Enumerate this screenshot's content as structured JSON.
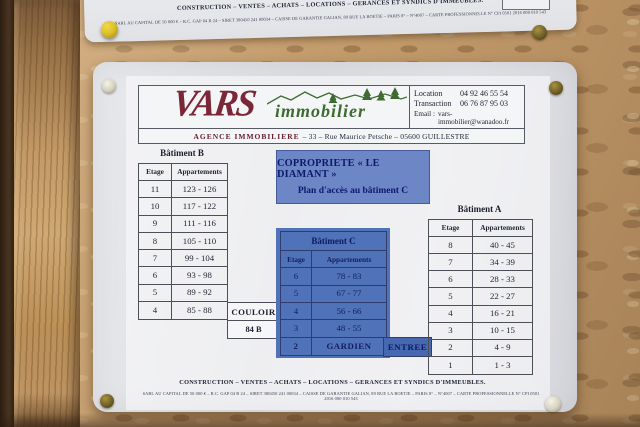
{
  "upper_sign": {
    "services_line": "CONSTRUCTION – VENTES – ACHATS – LOCATIONS – GERANCES ET SYNDICS D'IMMEUBLES.",
    "legal_line": "SARL AU CAPITAL DE 50 000 € – R.C. GAP 04 B 24 – SIRET 380450 241 00034 – CAISSE DE GARANTIE GALIAN, 89 RUE LA BOETIE – PARIS 8° – N°4007 – CARTE PROFESSIONNELLE N° CPI 0501 2016 000 010 543"
  },
  "sign": {
    "brand": {
      "name": "VARS",
      "suffix": "immobilier"
    },
    "agency_line": {
      "prefix": "AGENCE IMMOBILIERE",
      "rest": "– 33 – Rue Maurice Petsche – 05600 GUILLESTRE"
    },
    "contacts": [
      {
        "label": "Location",
        "value": "04 92 46 55 54"
      },
      {
        "label": "Transaction",
        "value": "06 76 87 95 03"
      },
      {
        "label": "Email :",
        "value": "vars-immobilier@wanadoo.fr"
      }
    ],
    "title_box": {
      "line1": "COPROPRIETE « LE DIAMANT »",
      "line2": "Plan d'accès au bâtiment C"
    },
    "batiment_b": {
      "title": "Bâtiment B",
      "headers": [
        "Etage",
        "Appartements"
      ],
      "rows": [
        [
          "11",
          "123 - 126"
        ],
        [
          "10",
          "117 - 122"
        ],
        [
          "9",
          "111 - 116"
        ],
        [
          "8",
          "105 - 110"
        ],
        [
          "7",
          "99 - 104"
        ],
        [
          "6",
          "93 - 98"
        ],
        [
          "5",
          "89 - 92"
        ],
        [
          "4",
          "85 - 88"
        ]
      ]
    },
    "batiment_c": {
      "title": "Bâtiment C",
      "headers": [
        "Etage",
        "Appartements"
      ],
      "rows": [
        [
          "6",
          "78 - 83"
        ],
        [
          "5",
          "67 - 77"
        ],
        [
          "4",
          "56 - 66"
        ],
        [
          "3",
          "48 - 55"
        ],
        [
          "2",
          "GARDIEN"
        ]
      ]
    },
    "batiment_a": {
      "title": "Bâtiment A",
      "headers": [
        "Etage",
        "Appartements"
      ],
      "rows": [
        [
          "8",
          "40 - 45"
        ],
        [
          "7",
          "34 - 39"
        ],
        [
          "6",
          "28 - 33"
        ],
        [
          "5",
          "22 - 27"
        ],
        [
          "4",
          "16 - 21"
        ],
        [
          "3",
          "10 - 15"
        ],
        [
          "2",
          "4 - 9"
        ],
        [
          "1",
          "1 - 3"
        ]
      ]
    },
    "corridor": {
      "line1": "COULOIR",
      "line2": "84 B"
    },
    "entree_label": "ENTREE",
    "footer": {
      "services_line": "CONSTRUCTION – VENTES – ACHATS – LOCATIONS – GERANCES ET SYNDICS D'IMMEUBLES.",
      "legal_line": "SARL AU CAPITAL DE 50 000 € – R.C. GAP 04 B 24 – SIRET 380450 241 00034 – CAISSE DE GARANTIE GALIAN, 89 RUE LA BOETIE – PARIS 8° – N°4007 – CARTE PROFESSIONNELLE N° CPI 0501 2016 000 010 543"
    }
  },
  "colors": {
    "table_blue": "#4f72b8",
    "title_box_blue": "#6d86c6",
    "entree_blue": "#4568b0",
    "brand_maroon": "#7b2737",
    "brand_green": "#3f6b33",
    "pin_yellow": "#e3c326"
  }
}
